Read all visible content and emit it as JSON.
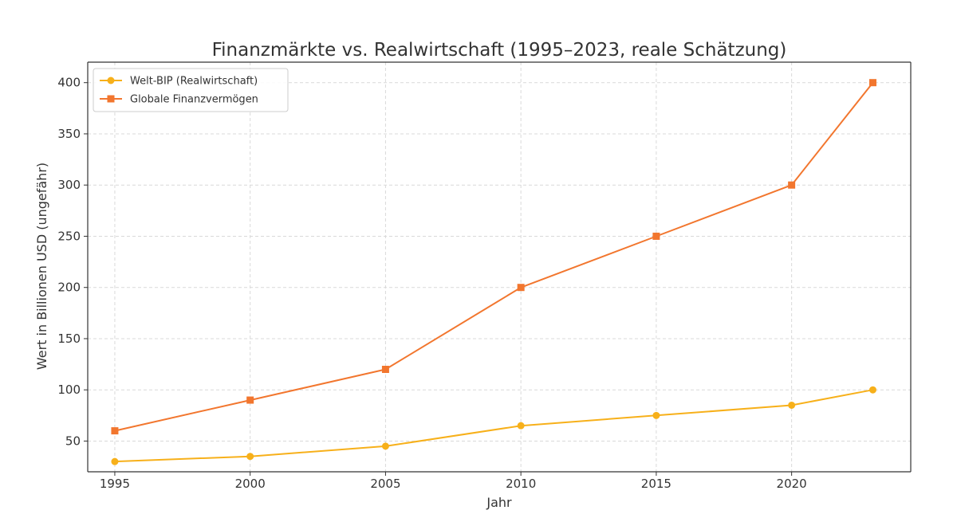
{
  "chart_data": {
    "type": "line",
    "title": "Finanzmärkte vs. Realwirtschaft (1995–2023, reale Schätzung)",
    "xlabel": "Jahr",
    "ylabel": "Wert in Billionen USD (ungefähr)",
    "x": [
      1995,
      2000,
      2005,
      2010,
      2015,
      2020,
      2023
    ],
    "xlim": [
      1994,
      2024.4
    ],
    "ylim": [
      20,
      420
    ],
    "xticks": [
      "1995",
      "2000",
      "2005",
      "2010",
      "2015",
      "2020"
    ],
    "yticks": [
      "50",
      "100",
      "150",
      "200",
      "250",
      "300",
      "350",
      "400"
    ],
    "grid": true,
    "legend_position": "top-left",
    "series": [
      {
        "name": "Welt-BIP (Realwirtschaft)",
        "values": [
          30,
          35,
          45,
          65,
          75,
          85,
          100
        ],
        "color": "#f7b01a",
        "marker": "circle"
      },
      {
        "name": "Globale Finanzvermögen",
        "values": [
          60,
          90,
          120,
          200,
          250,
          300,
          400
        ],
        "color": "#f2762e",
        "marker": "square"
      }
    ]
  }
}
